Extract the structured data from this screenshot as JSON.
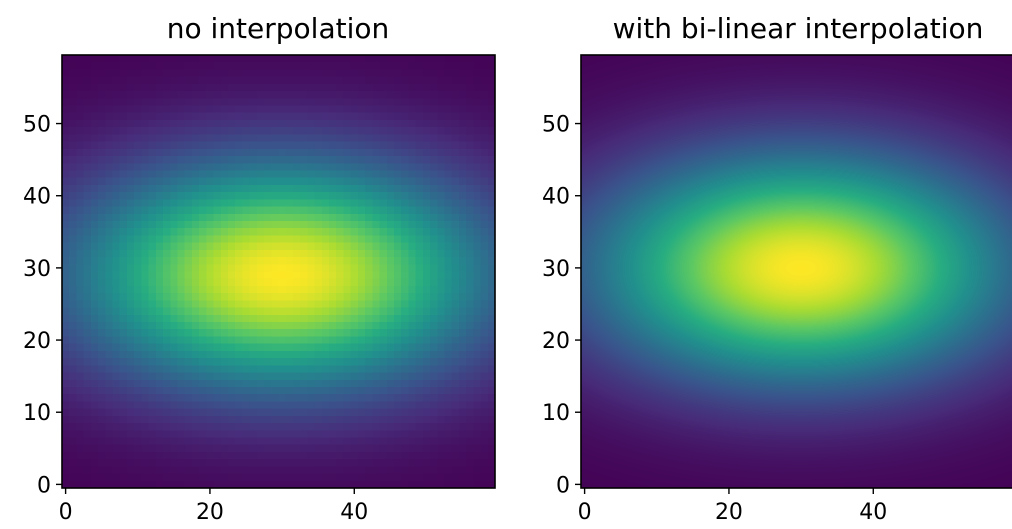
{
  "chart_data": [
    {
      "type": "heatmap",
      "title": "no interpolation",
      "interpolation": "none",
      "colormap": "viridis",
      "grid": false,
      "image_shape": [
        60,
        60
      ],
      "field": {
        "peak_value": 1.0,
        "center_row": 30,
        "center_col": 30,
        "row_sigma": 11,
        "col_sigma": 20
      },
      "x_ticks": [
        0,
        20,
        40
      ],
      "y_ticks": [
        0,
        10,
        20,
        30,
        40,
        50
      ],
      "x_tick_labels": [
        "0",
        "20",
        "40"
      ],
      "y_tick_labels": [
        "0",
        "10",
        "20",
        "30",
        "40",
        "50"
      ],
      "xlim": [
        -0.5,
        59.5
      ],
      "ylim": [
        59.5,
        -0.5
      ]
    },
    {
      "type": "heatmap",
      "title": "with bi-linear interpolation",
      "interpolation": "bilinear",
      "colormap": "viridis",
      "grid": false,
      "image_shape": [
        60,
        60
      ],
      "field": {
        "peak_value": 1.0,
        "center_row": 30,
        "center_col": 30,
        "row_sigma": 11,
        "col_sigma": 20
      },
      "x_ticks": [
        0,
        20,
        40
      ],
      "y_ticks": [
        0,
        10,
        20,
        30,
        40,
        50
      ],
      "x_tick_labels": [
        "0",
        "20",
        "40"
      ],
      "y_tick_labels": [
        "0",
        "10",
        "20",
        "30",
        "40",
        "50"
      ],
      "xlim": [
        -0.5,
        59.5
      ],
      "ylim": [
        59.5,
        -0.5
      ]
    }
  ]
}
